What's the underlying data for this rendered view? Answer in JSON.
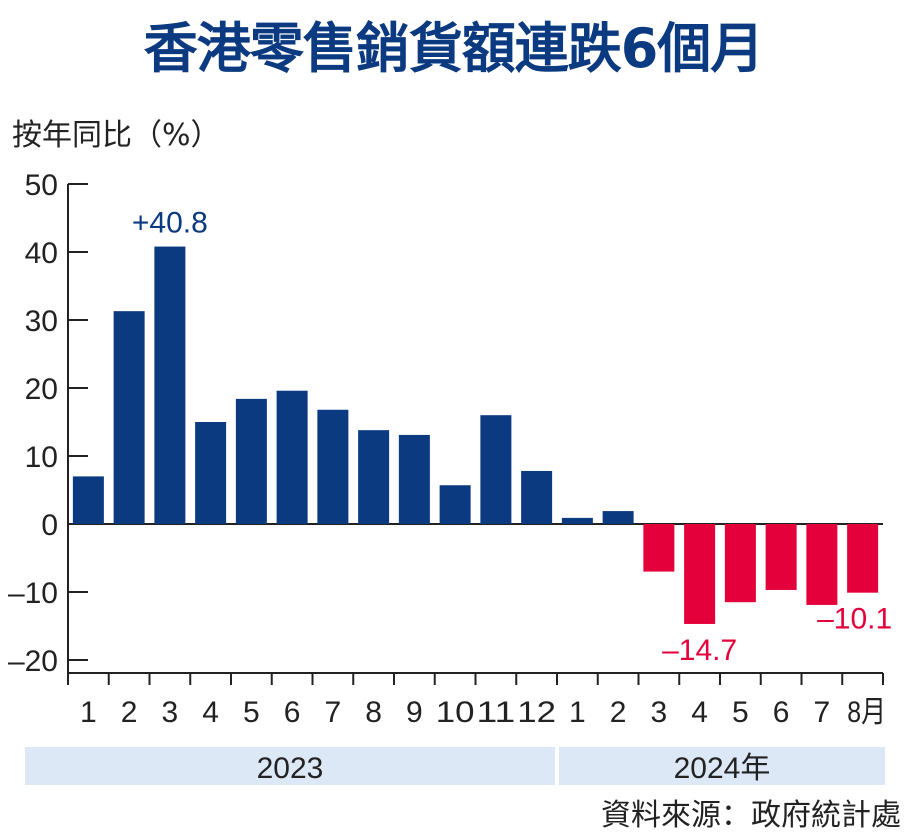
{
  "chart_data": {
    "type": "bar",
    "title": "香港零售銷貨額連跌6個月",
    "ylabel": "按年同比（%）",
    "xlabel": "",
    "ylim": [
      -20,
      50
    ],
    "yticks": [
      50,
      40,
      30,
      20,
      10,
      0,
      -10,
      -20
    ],
    "yticks_labels": [
      "50",
      "40",
      "30",
      "20",
      "10",
      "0",
      "–10",
      "–20"
    ],
    "categories": [
      "1",
      "2",
      "3",
      "4",
      "5",
      "6",
      "7",
      "8",
      "9",
      "10",
      "11",
      "12",
      "1",
      "2",
      "3",
      "4",
      "5",
      "6",
      "7",
      "8月"
    ],
    "years": [
      {
        "label": "2023",
        "months": 12
      },
      {
        "label": "2024年",
        "months": 8
      }
    ],
    "values": [
      7.0,
      31.3,
      40.8,
      15.0,
      18.4,
      19.6,
      16.8,
      13.8,
      13.1,
      5.7,
      16.0,
      7.8,
      0.9,
      1.9,
      -7.0,
      -14.7,
      -11.5,
      -9.7,
      -11.9,
      -10.1
    ],
    "annotations": [
      {
        "index": 2,
        "text": "+40.8"
      },
      {
        "index": 15,
        "text": "–14.7"
      },
      {
        "index": 19,
        "text": "–10.1"
      }
    ],
    "colors": {
      "positive": "#0b3a80",
      "negative": "#e4003a",
      "year_band": "#dce8f6"
    },
    "grid": false,
    "source": "資料來源：政府統計處"
  }
}
